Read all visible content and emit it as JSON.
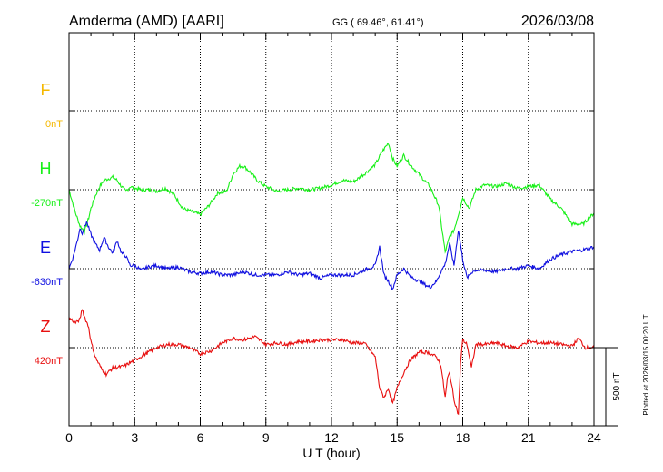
{
  "header": {
    "station": "Amderma (AMD)  [AARI]",
    "coords": "GG ( 69.46°,  61.41°)",
    "date": "2026/03/08"
  },
  "footer_note": "Plotted at 2026/03/15 00:20 UT",
  "scale_label": "500 nT",
  "colors": {
    "F": "#f5b800",
    "H": "#19f019",
    "E": "#1010e0",
    "Z": "#e81010",
    "axis": "#000000",
    "grid": "#000000"
  },
  "chart_data": {
    "type": "line",
    "xlabel": "U T (hour)",
    "xlim": [
      0,
      24
    ],
    "x_ticks": [
      "0",
      "3",
      "6",
      "9",
      "12",
      "15",
      "18",
      "21",
      "24"
    ],
    "scale_nT": 500,
    "series": [
      {
        "name": "F",
        "baseline_label": "0nT",
        "points": []
      },
      {
        "name": "H",
        "baseline_label": "-270nT",
        "points": [
          [
            0,
            0
          ],
          [
            0.3,
            -150
          ],
          [
            0.5,
            -230
          ],
          [
            0.7,
            -270
          ],
          [
            0.9,
            -180
          ],
          [
            1.0,
            -120
          ],
          [
            1.2,
            -40
          ],
          [
            1.4,
            20
          ],
          [
            1.6,
            60
          ],
          [
            1.8,
            70
          ],
          [
            2.0,
            80
          ],
          [
            2.2,
            60
          ],
          [
            2.4,
            20
          ],
          [
            2.6,
            -10
          ],
          [
            2.8,
            20
          ],
          [
            3.0,
            10
          ],
          [
            3.3,
            0
          ],
          [
            3.6,
            0
          ],
          [
            4.0,
            -10
          ],
          [
            4.4,
            10
          ],
          [
            4.8,
            -30
          ],
          [
            5.2,
            -120
          ],
          [
            5.6,
            -140
          ],
          [
            6.0,
            -160
          ],
          [
            6.4,
            -100
          ],
          [
            6.8,
            -20
          ],
          [
            7.2,
            -10
          ],
          [
            7.5,
            100
          ],
          [
            7.8,
            150
          ],
          [
            8.0,
            150
          ],
          [
            8.3,
            110
          ],
          [
            8.6,
            60
          ],
          [
            9.0,
            20
          ],
          [
            9.5,
            -10
          ],
          [
            10.0,
            0
          ],
          [
            10.5,
            10
          ],
          [
            11.0,
            0
          ],
          [
            11.5,
            10
          ],
          [
            12.0,
            30
          ],
          [
            12.5,
            60
          ],
          [
            13.0,
            50
          ],
          [
            13.5,
            100
          ],
          [
            14.0,
            160
          ],
          [
            14.3,
            240
          ],
          [
            14.6,
            300
          ],
          [
            14.8,
            200
          ],
          [
            15.0,
            150
          ],
          [
            15.3,
            220
          ],
          [
            15.6,
            160
          ],
          [
            16.0,
            100
          ],
          [
            16.5,
            20
          ],
          [
            16.9,
            -100
          ],
          [
            17.2,
            -400
          ],
          [
            17.4,
            -300
          ],
          [
            17.6,
            -260
          ],
          [
            17.8,
            -160
          ],
          [
            18.0,
            -50
          ],
          [
            18.3,
            -120
          ],
          [
            18.6,
            0
          ],
          [
            19.0,
            30
          ],
          [
            19.5,
            20
          ],
          [
            20.0,
            40
          ],
          [
            20.5,
            10
          ],
          [
            21.0,
            20
          ],
          [
            21.5,
            30
          ],
          [
            22.0,
            -60
          ],
          [
            22.5,
            -120
          ],
          [
            23.0,
            -220
          ],
          [
            23.5,
            -220
          ],
          [
            24.0,
            -150
          ]
        ]
      },
      {
        "name": "E",
        "baseline_label": "-630nT",
        "points": [
          [
            0,
            0
          ],
          [
            0.2,
            80
          ],
          [
            0.4,
            190
          ],
          [
            0.5,
            260
          ],
          [
            0.6,
            230
          ],
          [
            0.8,
            300
          ],
          [
            1.0,
            220
          ],
          [
            1.2,
            160
          ],
          [
            1.4,
            120
          ],
          [
            1.6,
            200
          ],
          [
            1.8,
            140
          ],
          [
            2.0,
            100
          ],
          [
            2.2,
            180
          ],
          [
            2.4,
            100
          ],
          [
            2.6,
            80
          ],
          [
            2.8,
            20
          ],
          [
            3.0,
            20
          ],
          [
            3.3,
            -10
          ],
          [
            3.6,
            10
          ],
          [
            4.0,
            20
          ],
          [
            4.5,
            0
          ],
          [
            5.0,
            10
          ],
          [
            5.5,
            -20
          ],
          [
            6.0,
            -30
          ],
          [
            6.5,
            -20
          ],
          [
            7.0,
            -40
          ],
          [
            7.5,
            -40
          ],
          [
            8.0,
            -20
          ],
          [
            8.5,
            -40
          ],
          [
            9.0,
            -40
          ],
          [
            9.5,
            -40
          ],
          [
            10.0,
            -20
          ],
          [
            10.5,
            -40
          ],
          [
            11.0,
            -30
          ],
          [
            11.5,
            -60
          ],
          [
            12.0,
            -40
          ],
          [
            12.5,
            -40
          ],
          [
            13.0,
            -40
          ],
          [
            13.5,
            -10
          ],
          [
            14.0,
            20
          ],
          [
            14.2,
            140
          ],
          [
            14.4,
            -40
          ],
          [
            14.6,
            -80
          ],
          [
            14.8,
            -130
          ],
          [
            15.0,
            -40
          ],
          [
            15.3,
            0
          ],
          [
            15.6,
            -50
          ],
          [
            16.0,
            -80
          ],
          [
            16.5,
            -120
          ],
          [
            16.8,
            -80
          ],
          [
            17.0,
            -20
          ],
          [
            17.2,
            30
          ],
          [
            17.4,
            160
          ],
          [
            17.6,
            20
          ],
          [
            17.8,
            250
          ],
          [
            18.0,
            60
          ],
          [
            18.2,
            -60
          ],
          [
            18.5,
            -10
          ],
          [
            19.0,
            -10
          ],
          [
            19.5,
            -20
          ],
          [
            20.0,
            0
          ],
          [
            20.5,
            0
          ],
          [
            21.0,
            20
          ],
          [
            21.5,
            0
          ],
          [
            22.0,
            60
          ],
          [
            22.5,
            90
          ],
          [
            23.0,
            110
          ],
          [
            23.5,
            120
          ],
          [
            24.0,
            140
          ]
        ]
      },
      {
        "name": "Z",
        "baseline_label": "420nT",
        "points": [
          [
            0,
            190
          ],
          [
            0.3,
            160
          ],
          [
            0.5,
            180
          ],
          [
            0.6,
            250
          ],
          [
            0.7,
            200
          ],
          [
            0.9,
            130
          ],
          [
            1.0,
            40
          ],
          [
            1.2,
            -60
          ],
          [
            1.5,
            -140
          ],
          [
            1.7,
            -170
          ],
          [
            2.0,
            -130
          ],
          [
            2.5,
            -120
          ],
          [
            3.0,
            -80
          ],
          [
            3.5,
            -40
          ],
          [
            4.0,
            0
          ],
          [
            4.5,
            20
          ],
          [
            5.0,
            20
          ],
          [
            5.5,
            0
          ],
          [
            6.0,
            -40
          ],
          [
            6.5,
            -20
          ],
          [
            7.0,
            30
          ],
          [
            7.5,
            60
          ],
          [
            8.0,
            50
          ],
          [
            8.5,
            70
          ],
          [
            9.0,
            20
          ],
          [
            9.5,
            30
          ],
          [
            10.0,
            20
          ],
          [
            10.5,
            40
          ],
          [
            11.0,
            40
          ],
          [
            11.5,
            50
          ],
          [
            12.0,
            50
          ],
          [
            12.5,
            50
          ],
          [
            13.0,
            30
          ],
          [
            13.5,
            30
          ],
          [
            14.0,
            -60
          ],
          [
            14.2,
            -260
          ],
          [
            14.4,
            -320
          ],
          [
            14.6,
            -260
          ],
          [
            14.8,
            -360
          ],
          [
            15.0,
            -260
          ],
          [
            15.3,
            -160
          ],
          [
            15.6,
            -80
          ],
          [
            16.0,
            -30
          ],
          [
            16.4,
            -30
          ],
          [
            16.8,
            -60
          ],
          [
            17.0,
            -110
          ],
          [
            17.2,
            -320
          ],
          [
            17.3,
            -200
          ],
          [
            17.4,
            -160
          ],
          [
            17.6,
            -330
          ],
          [
            17.8,
            -430
          ],
          [
            17.9,
            -100
          ],
          [
            18.0,
            50
          ],
          [
            18.2,
            20
          ],
          [
            18.4,
            -130
          ],
          [
            18.6,
            20
          ],
          [
            19.0,
            20
          ],
          [
            19.5,
            30
          ],
          [
            20.0,
            10
          ],
          [
            20.5,
            0
          ],
          [
            21.0,
            40
          ],
          [
            21.5,
            30
          ],
          [
            22.0,
            30
          ],
          [
            22.5,
            20
          ],
          [
            23.0,
            10
          ],
          [
            23.3,
            60
          ],
          [
            23.6,
            0
          ],
          [
            24.0,
            0
          ]
        ]
      }
    ]
  }
}
